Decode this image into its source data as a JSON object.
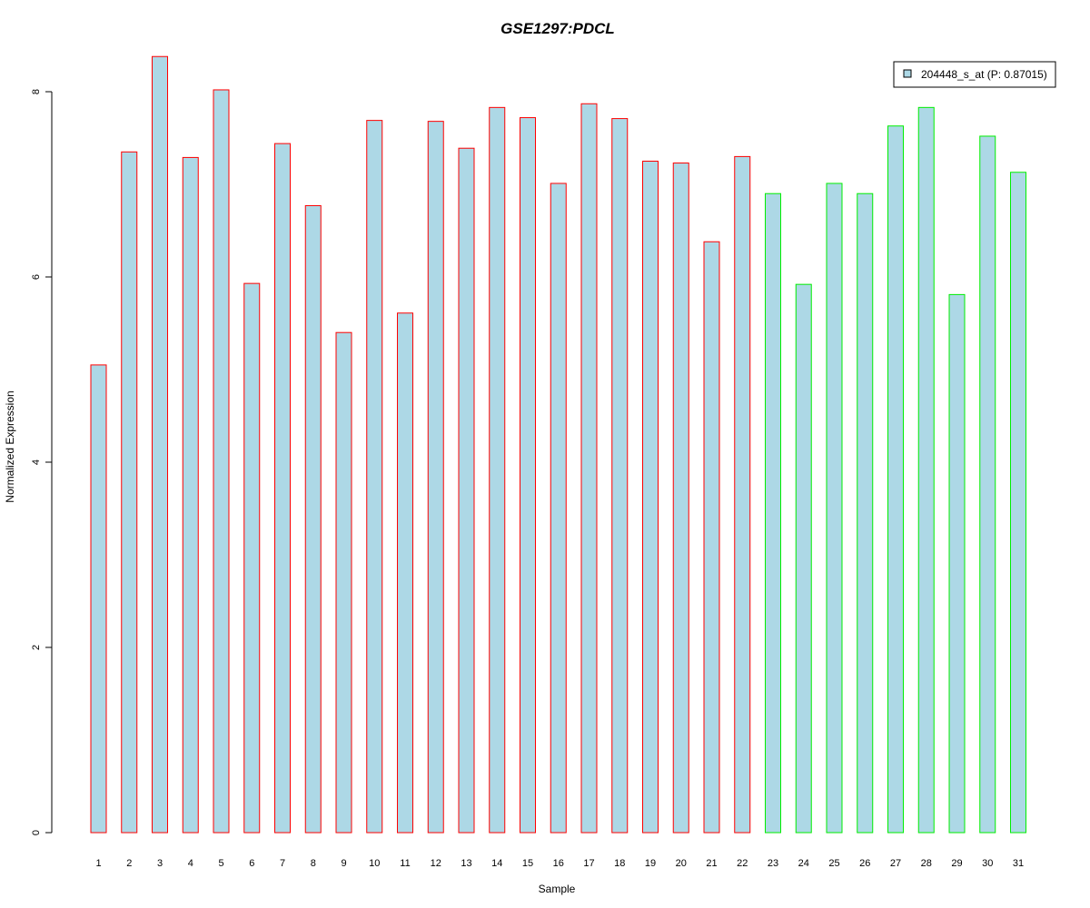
{
  "chart_data": {
    "type": "bar",
    "title": "GSE1297:PDCL",
    "xlabel": "Sample",
    "ylabel": "Normalized Expression",
    "ylim": [
      0,
      8.4
    ],
    "yticks": [
      0,
      2,
      4,
      6,
      8
    ],
    "categories": [
      "1",
      "2",
      "3",
      "4",
      "5",
      "6",
      "7",
      "8",
      "9",
      "10",
      "11",
      "12",
      "13",
      "14",
      "15",
      "16",
      "17",
      "18",
      "19",
      "20",
      "21",
      "22",
      "23",
      "24",
      "25",
      "26",
      "27",
      "28",
      "29",
      "30",
      "31"
    ],
    "series": [
      {
        "name": "204448_s_at (P: 0.87015)",
        "fill": "#add8e6",
        "values": [
          5.05,
          7.35,
          8.38,
          7.29,
          8.02,
          5.93,
          7.44,
          6.77,
          5.4,
          7.69,
          5.61,
          7.68,
          7.39,
          7.83,
          7.72,
          7.01,
          7.87,
          7.71,
          7.25,
          7.23,
          6.38,
          7.3,
          6.9,
          5.92,
          7.01,
          6.9,
          7.63,
          7.83,
          5.81,
          7.52,
          7.13
        ]
      }
    ],
    "group_border_colors": [
      "#ff0000",
      "#ff0000",
      "#ff0000",
      "#ff0000",
      "#ff0000",
      "#ff0000",
      "#ff0000",
      "#ff0000",
      "#ff0000",
      "#ff0000",
      "#ff0000",
      "#ff0000",
      "#ff0000",
      "#ff0000",
      "#ff0000",
      "#ff0000",
      "#ff0000",
      "#ff0000",
      "#ff0000",
      "#ff0000",
      "#ff0000",
      "#ff0000",
      "#00ee00",
      "#00ee00",
      "#00ee00",
      "#00ee00",
      "#00ee00",
      "#00ee00",
      "#00ee00",
      "#00ee00",
      "#00ee00"
    ],
    "title_color": "#0000cd",
    "legend_placement": "top-right",
    "grid": false
  }
}
